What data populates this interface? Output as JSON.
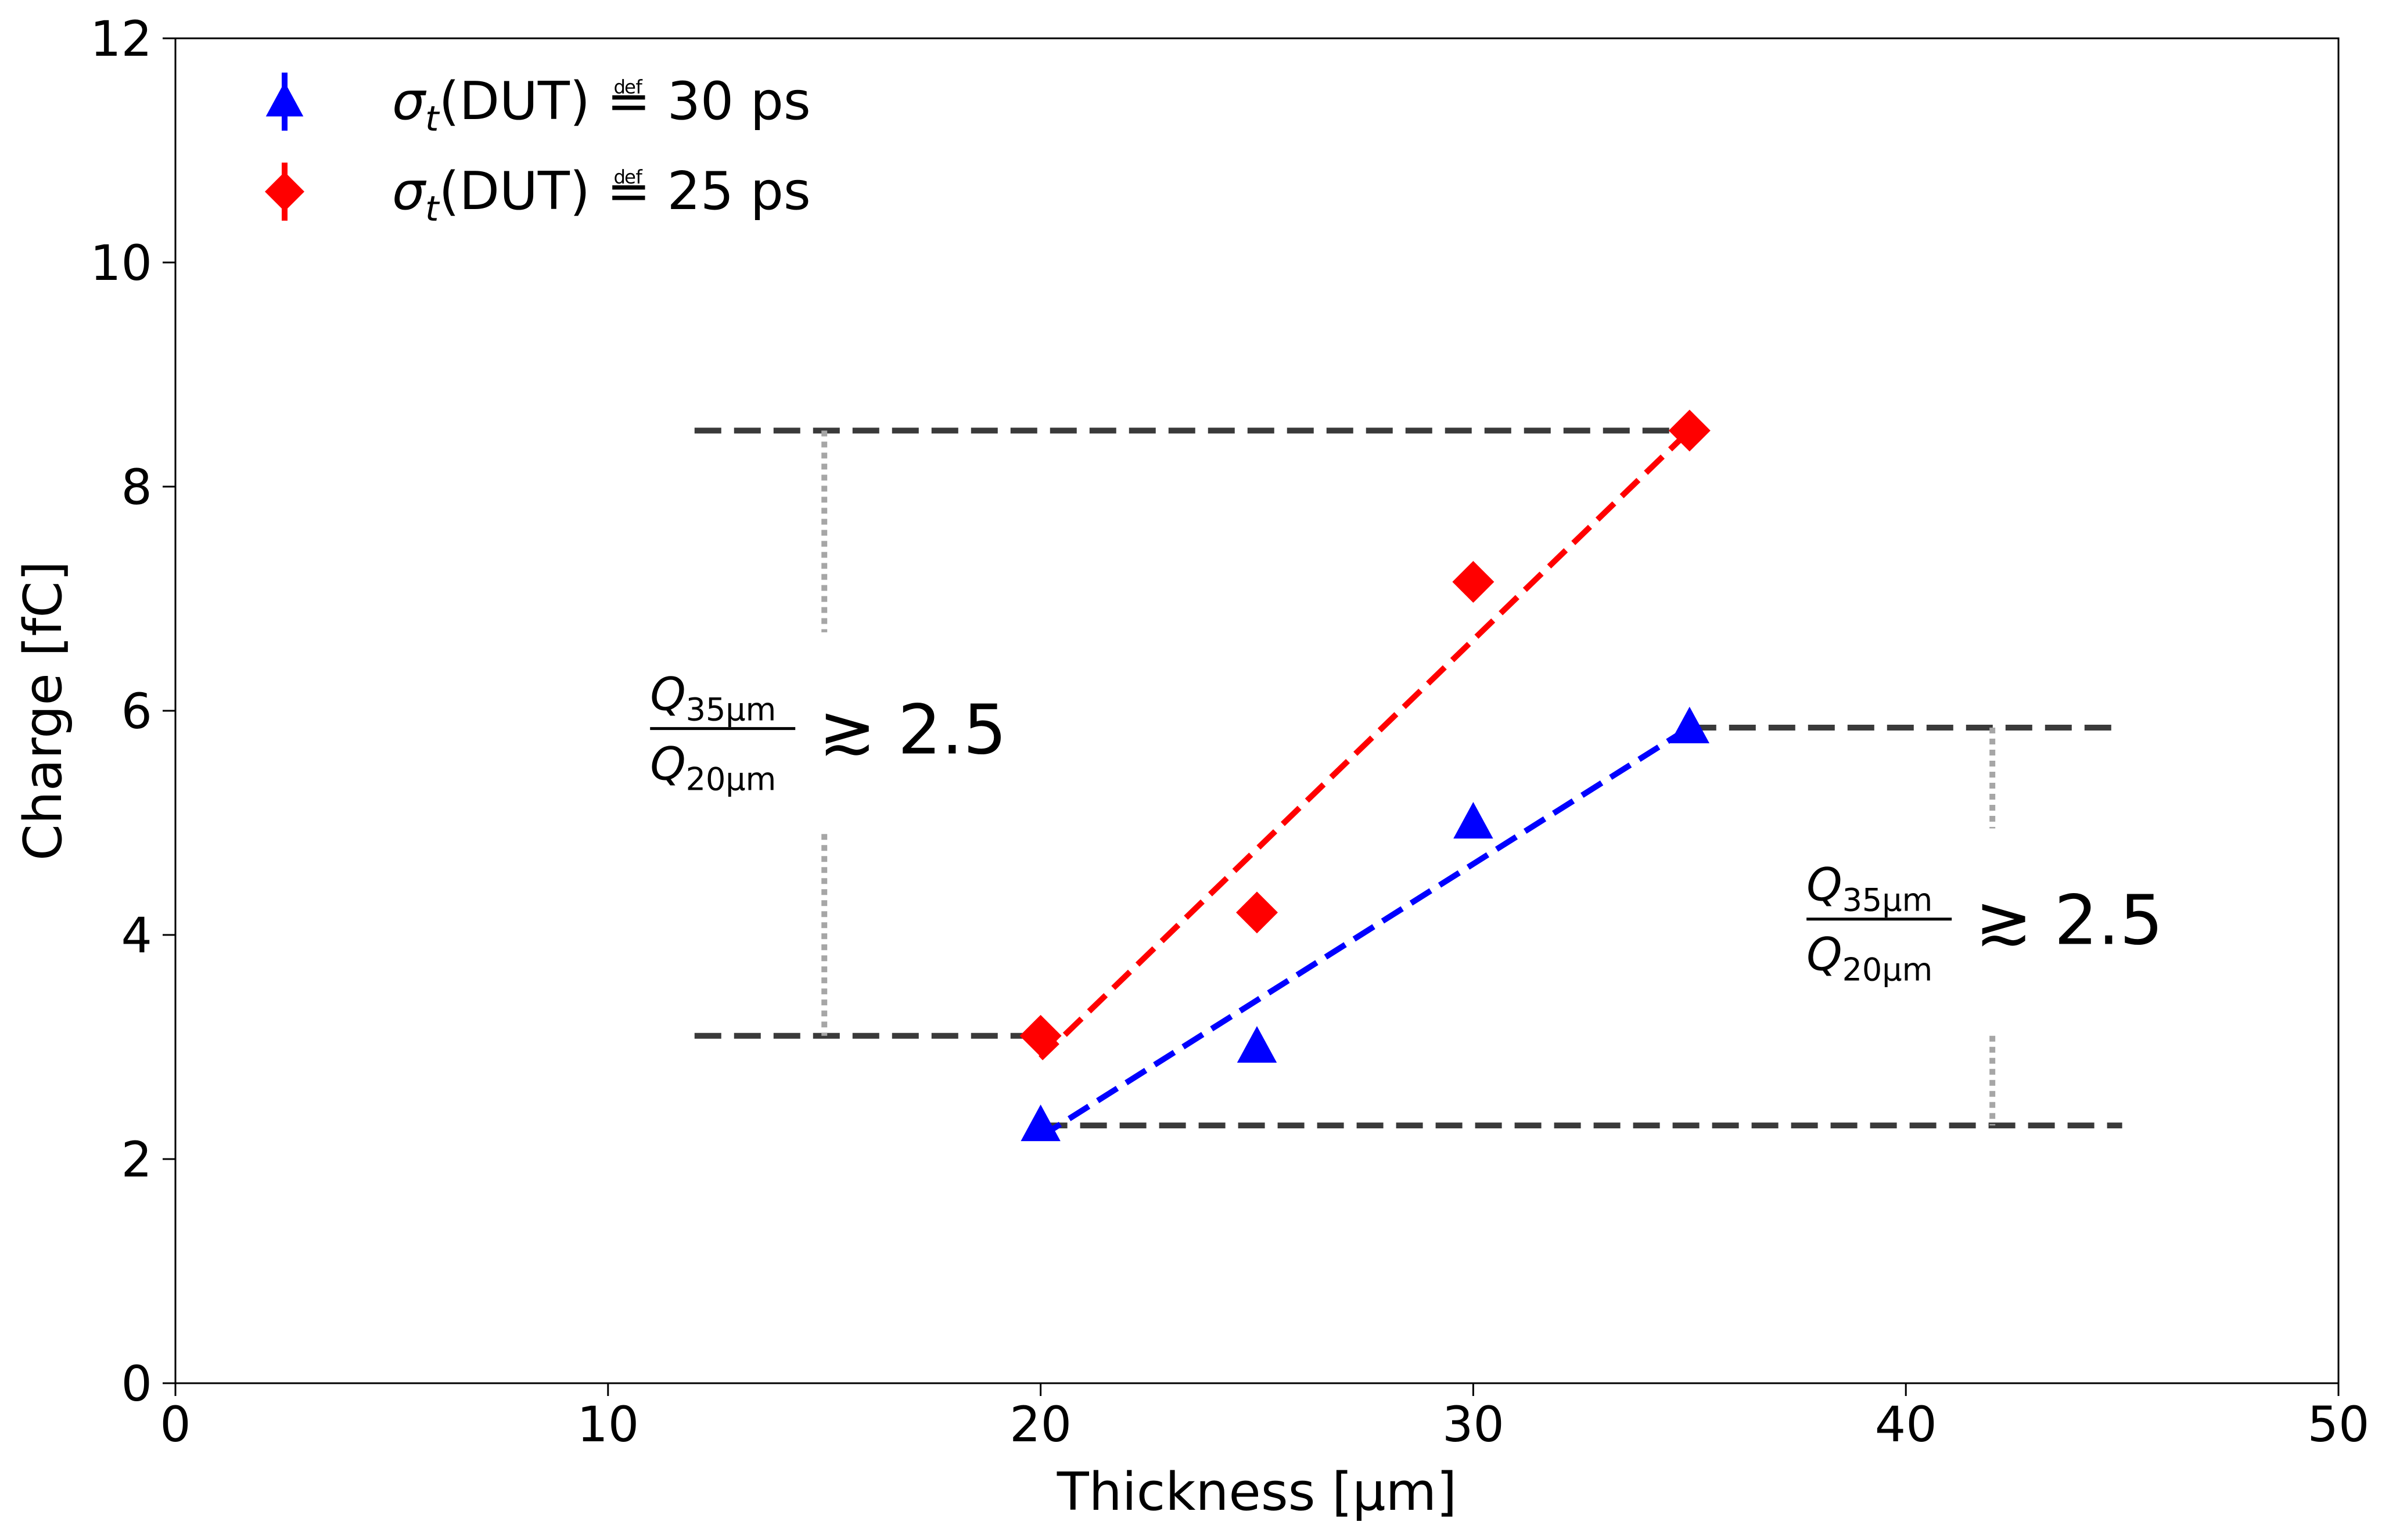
{
  "chart_data": {
    "type": "scatter",
    "xlabel": "Thickness [µm]",
    "ylabel": "Charge [fC]",
    "xlim": [
      0,
      50
    ],
    "ylim": [
      0,
      12
    ],
    "x_ticks": [
      0,
      10,
      20,
      30,
      40,
      50
    ],
    "y_ticks": [
      0,
      2,
      4,
      6,
      8,
      10,
      12
    ],
    "grid": false,
    "legend_position": "top-left",
    "series": [
      {
        "name": "σt(DUT) ≝ 30 ps",
        "legend_main": "σ",
        "legend_sub": "t",
        "legend_rest": "(DUT) ≝ 30 ps",
        "color": "#0000ff",
        "marker": "triangle",
        "x": [
          20,
          25,
          30,
          35
        ],
        "y": [
          2.3,
          3.0,
          5.0,
          5.85
        ],
        "fit": {
          "x": [
            20,
            35
          ],
          "y": [
            2.2,
            5.85
          ]
        }
      },
      {
        "name": "σt(DUT) ≝ 25 ps",
        "legend_main": "σ",
        "legend_sub": "t",
        "legend_rest": "(DUT) ≝ 25 ps",
        "color": "#ff0000",
        "marker": "diamond",
        "x": [
          20,
          25,
          30,
          35
        ],
        "y": [
          3.1,
          4.2,
          7.15,
          8.5
        ],
        "fit": {
          "x": [
            20,
            35
          ],
          "y": [
            2.9,
            8.5
          ]
        }
      }
    ],
    "reference_lines": {
      "red_top": {
        "y": 8.5,
        "x": [
          12,
          35
        ]
      },
      "red_bottom": {
        "y": 3.1,
        "x": [
          12,
          20
        ]
      },
      "blue_top": {
        "y": 5.85,
        "x": [
          35,
          45
        ]
      },
      "blue_bottom": {
        "y": 2.3,
        "x": [
          20,
          45
        ]
      }
    },
    "annotations": [
      {
        "x": 15,
        "numerator_main": "Q",
        "numerator_sub": "35μm",
        "denominator_main": "Q",
        "denominator_sub": "20μm",
        "relation": "≳ 2.5",
        "y_center": 5.8,
        "bracket_upper": [
          8.5,
          6.7
        ],
        "bracket_lower": [
          4.9,
          3.1
        ]
      },
      {
        "x": 42,
        "numerator_main": "Q",
        "numerator_sub": "35μm",
        "denominator_main": "Q",
        "denominator_sub": "20μm",
        "relation": "≳ 2.5",
        "y_center": 4.1,
        "bracket_upper": [
          5.85,
          4.95
        ],
        "bracket_lower": [
          3.1,
          2.3
        ]
      }
    ]
  }
}
